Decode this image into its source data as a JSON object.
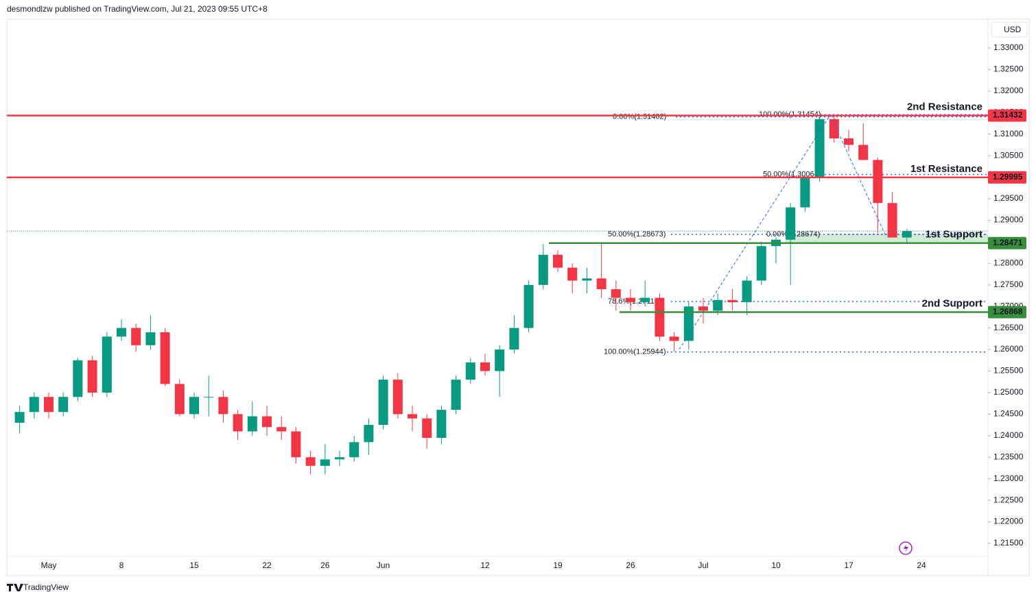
{
  "chart_data": {
    "type": "candlestick",
    "header": "desmondlzw published on TradingView.com, Jul 21, 2023 09:55 UTC+8",
    "currency": "USD",
    "footer": "TradingView",
    "up_color": "#089981",
    "down_color": "#f23645",
    "categories": [
      null,
      null,
      "May",
      null,
      null,
      null,
      null,
      "8",
      null,
      null,
      null,
      null,
      "15",
      null,
      null,
      null,
      null,
      "22",
      null,
      null,
      null,
      "26",
      null,
      null,
      null,
      "Jun",
      null,
      null,
      null,
      null,
      null,
      null,
      "12",
      null,
      null,
      null,
      null,
      "19",
      null,
      null,
      null,
      null,
      "26",
      null,
      null,
      null,
      null,
      "Jul",
      null,
      null,
      null,
      null,
      "10",
      null,
      null,
      null,
      null,
      "17",
      null,
      null,
      null,
      null,
      "24",
      null,
      null,
      null,
      null
    ],
    "open": [
      1.243,
      1.2455,
      1.249,
      1.2455,
      1.249,
      1.2575,
      1.25,
      1.263,
      1.265,
      1.261,
      1.264,
      1.252,
      1.245,
      1.249,
      1.249,
      1.245,
      1.241,
      1.2445,
      1.242,
      1.241,
      1.235,
      1.233,
      1.2345,
      1.235,
      1.2385,
      1.2425,
      1.253,
      1.245,
      1.244,
      1.2395,
      1.246,
      1.253,
      1.257,
      1.255,
      1.26,
      1.265,
      1.275,
      1.282,
      1.279,
      1.276,
      1.2765,
      1.274,
      1.272,
      1.271,
      1.272,
      1.263,
      1.262,
      1.27,
      1.269,
      1.2715,
      1.271,
      1.276,
      1.284,
      1.2855,
      1.293,
      1.3,
      1.3135,
      1.309,
      1.3075,
      1.304,
      1.294,
      1.286,
      null,
      null,
      null,
      null,
      null
    ],
    "high": [
      1.247,
      1.25,
      1.25,
      1.25,
      1.258,
      1.2585,
      1.264,
      1.267,
      1.266,
      1.268,
      1.265,
      1.253,
      1.25,
      1.254,
      1.2505,
      1.246,
      1.248,
      1.247,
      1.2445,
      1.242,
      1.2365,
      1.238,
      1.2365,
      1.24,
      1.244,
      1.254,
      1.2545,
      1.247,
      1.245,
      1.247,
      1.254,
      1.258,
      1.259,
      1.261,
      1.268,
      1.276,
      1.2845,
      1.283,
      1.28,
      1.279,
      1.2845,
      1.276,
      1.274,
      1.276,
      1.273,
      1.264,
      1.271,
      1.272,
      1.273,
      1.274,
      1.277,
      1.285,
      1.286,
      1.294,
      1.301,
      1.3145,
      1.3145,
      1.311,
      1.3125,
      1.3045,
      1.2965,
      1.288,
      null,
      null,
      null,
      null,
      null
    ],
    "low": [
      1.2405,
      1.244,
      1.244,
      1.2445,
      1.248,
      1.249,
      1.249,
      1.262,
      1.2595,
      1.26,
      1.2515,
      1.2445,
      1.244,
      1.2445,
      1.243,
      1.239,
      1.24,
      1.24,
      1.239,
      1.2335,
      1.231,
      1.231,
      1.233,
      1.234,
      1.2355,
      1.2415,
      1.244,
      1.241,
      1.237,
      1.238,
      1.245,
      1.252,
      1.254,
      1.249,
      1.259,
      1.264,
      1.274,
      1.278,
      1.273,
      1.273,
      1.272,
      1.269,
      1.269,
      1.27,
      1.262,
      1.2595,
      1.26,
      1.266,
      1.268,
      1.269,
      1.268,
      1.275,
      1.28,
      1.275,
      1.292,
      1.299,
      1.308,
      1.306,
      1.304,
      1.287,
      1.286,
      1.2845,
      null,
      null,
      null,
      null,
      null
    ],
    "close": [
      1.2455,
      1.249,
      1.2455,
      1.249,
      1.2575,
      1.25,
      1.263,
      1.265,
      1.261,
      1.264,
      1.252,
      1.245,
      1.249,
      1.249,
      1.245,
      1.241,
      1.2445,
      1.242,
      1.241,
      1.235,
      1.233,
      1.2345,
      1.235,
      1.2385,
      1.2425,
      1.253,
      1.245,
      1.244,
      1.2395,
      1.246,
      1.253,
      1.257,
      1.255,
      1.26,
      1.265,
      1.275,
      1.282,
      1.279,
      1.276,
      1.2765,
      1.274,
      1.272,
      1.271,
      1.272,
      1.263,
      1.262,
      1.27,
      1.269,
      1.2715,
      1.271,
      1.276,
      1.284,
      1.2855,
      1.293,
      1.3,
      1.3135,
      1.309,
      1.3075,
      1.304,
      1.294,
      1.286,
      1.2875,
      null,
      null,
      null,
      null,
      null
    ],
    "ylim": [
      1.20784,
      1.33668
    ],
    "yticks": [
      {
        "value": 1.215,
        "label": "1.21500"
      },
      {
        "value": 1.22,
        "label": "1.22000"
      },
      {
        "value": 1.225,
        "label": "1.22500"
      },
      {
        "value": 1.23,
        "label": "1.23000"
      },
      {
        "value": 1.235,
        "label": "1.23500"
      },
      {
        "value": 1.24,
        "label": "1.24000"
      },
      {
        "value": 1.245,
        "label": "1.24500"
      },
      {
        "value": 1.25,
        "label": "1.25000"
      },
      {
        "value": 1.255,
        "label": "1.25500"
      },
      {
        "value": 1.26,
        "label": "1.26000"
      },
      {
        "value": 1.265,
        "label": "1.26500"
      },
      {
        "value": 1.27,
        "label": "1.27000"
      },
      {
        "value": 1.275,
        "label": "1.27500"
      },
      {
        "value": 1.28,
        "label": "1.28000"
      },
      {
        "value": 1.285,
        "label": "1.28500"
      },
      {
        "value": 1.29,
        "label": "1.29000"
      },
      {
        "value": 1.295,
        "label": "1.29500"
      },
      {
        "value": 1.3,
        "label": "1.30000"
      },
      {
        "value": 1.305,
        "label": "1.30500"
      },
      {
        "value": 1.31,
        "label": "1.31000"
      },
      {
        "value": 1.315,
        "label": "1.31500"
      },
      {
        "value": 1.32,
        "label": "1.32000"
      },
      {
        "value": 1.325,
        "label": "1.32500"
      },
      {
        "value": 1.33,
        "label": "1.33000"
      }
    ],
    "levels": [
      {
        "name": "2nd Resistance",
        "value": 1.31432,
        "label": "1.31432",
        "color": "#f23645"
      },
      {
        "name": "1st Resistance",
        "value": 1.29995,
        "label": "1.29995",
        "color": "#f23645"
      },
      {
        "name": "1st Support",
        "value": 1.28471,
        "label": "1.28471",
        "color": "#388e3c"
      },
      {
        "name": "2nd Support",
        "value": 1.26868,
        "label": "1.26868",
        "color": "#388e3c"
      }
    ],
    "fib": [
      {
        "label": "0.00%(1.31402)",
        "value": 1.31402
      },
      {
        "label": "100.00%(1.31454)",
        "value": 1.31454
      },
      {
        "label": "50.00%(1.30064)",
        "value": 1.30064
      },
      {
        "label": "50.00%(1.28673)",
        "value": 1.28673
      },
      {
        "label": "0.00%(1.28674)",
        "value": 1.28674
      },
      {
        "label": "78.6%(1.27115)",
        "value": 1.27115
      },
      {
        "label": "100.00%(1.25944)",
        "value": 1.25944
      }
    ],
    "fib_color": "#2962ff"
  }
}
